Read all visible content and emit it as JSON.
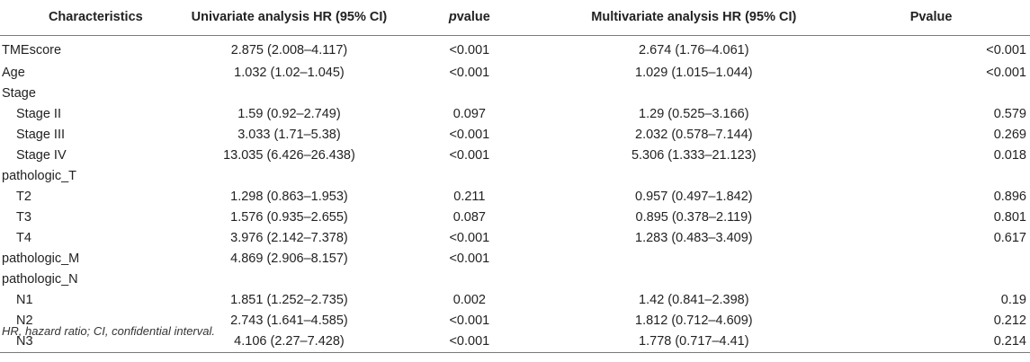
{
  "headers": {
    "characteristics": "Characteristics",
    "univariate": "Univariate analysis HR (95% CI)",
    "pvalue_italic": "p",
    "pvalue_rest": "value",
    "multivariate": "Multivariate analysis HR (95% CI)",
    "pvalue2": "Pvalue"
  },
  "rows": [
    {
      "name": "TMEscore",
      "sub": false,
      "uni": "2.875 (2.008–4.117)",
      "p": "<0.001",
      "multi": "2.674 (1.76–4.061)",
      "p2": "<0.001"
    },
    {
      "name": "Age",
      "sub": false,
      "uni": "1.032 (1.02–1.045)",
      "p": "<0.001",
      "multi": "1.029 (1.015–1.044)",
      "p2": "<0.001"
    },
    {
      "name": "Stage",
      "sub": false,
      "uni": "",
      "p": "",
      "multi": "",
      "p2": ""
    },
    {
      "name": "Stage II",
      "sub": true,
      "uni": "1.59 (0.92–2.749)",
      "p": "0.097",
      "multi": "1.29 (0.525–3.166)",
      "p2": "0.579"
    },
    {
      "name": "Stage III",
      "sub": true,
      "uni": "3.033 (1.71–5.38)",
      "p": "<0.001",
      "multi": "2.032 (0.578–7.144)",
      "p2": "0.269"
    },
    {
      "name": "Stage IV",
      "sub": true,
      "uni": "13.035 (6.426–26.438)",
      "p": "<0.001",
      "multi": "5.306 (1.333–21.123)",
      "p2": "0.018"
    },
    {
      "name": "pathologic_T",
      "sub": false,
      "uni": "",
      "p": "",
      "multi": "",
      "p2": ""
    },
    {
      "name": "T2",
      "sub": true,
      "uni": "1.298 (0.863–1.953)",
      "p": "0.211",
      "multi": "0.957 (0.497–1.842)",
      "p2": "0.896"
    },
    {
      "name": "T3",
      "sub": true,
      "uni": "1.576 (0.935–2.655)",
      "p": "0.087",
      "multi": "0.895 (0.378–2.119)",
      "p2": "0.801"
    },
    {
      "name": "T4",
      "sub": true,
      "uni": "3.976 (2.142–7.378)",
      "p": "<0.001",
      "multi": "1.283 (0.483–3.409)",
      "p2": "0.617"
    },
    {
      "name": "pathologic_M",
      "sub": false,
      "uni": "4.869 (2.906–8.157)",
      "p": "<0.001",
      "multi": "",
      "p2": ""
    },
    {
      "name": "pathologic_N",
      "sub": false,
      "uni": "",
      "p": "",
      "multi": "",
      "p2": ""
    },
    {
      "name": "N1",
      "sub": true,
      "uni": "1.851 (1.252–2.735)",
      "p": "0.002",
      "multi": "1.42 (0.841–2.398)",
      "p2": "0.19"
    },
    {
      "name": "N2",
      "sub": true,
      "uni": "2.743 (1.641–4.585)",
      "p": "<0.001",
      "multi": "1.812 (0.712–4.609)",
      "p2": "0.212"
    },
    {
      "name": "N3",
      "sub": true,
      "uni": "4.106 (2.27–7.428)",
      "p": "<0.001",
      "multi": "1.778 (0.717–4.41)",
      "p2": "0.214"
    }
  ],
  "footnote": "HR, hazard ratio; CI, confidential interval."
}
